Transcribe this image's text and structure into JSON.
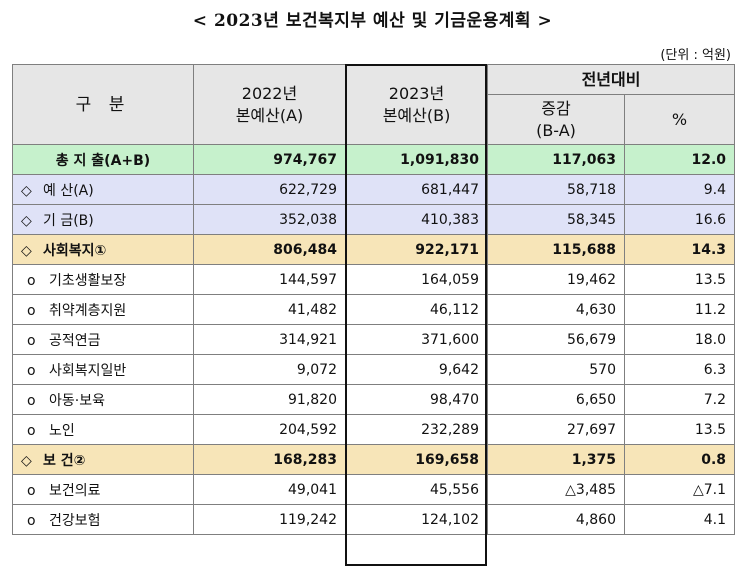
{
  "title": "< 2023년 보건복지부 예산 및 기금운용계획 >",
  "unit": "(단위 : 억원)",
  "header": {
    "category": "구 분",
    "col_2022_year": "2022년",
    "col_2022_sub": "본예산(A)",
    "col_2023_year": "2023년",
    "col_2023_sub": "본예산(B)",
    "yoy": "전년대비",
    "diff_line1": "증감",
    "diff_line2": "(B-A)",
    "pct": "%"
  },
  "rows": [
    {
      "marker": "",
      "label": "총 지 출(A+B)",
      "y2022": "974,767",
      "y2023": "1,091,830",
      "diff": "117,063",
      "pct": "12.0"
    },
    {
      "marker": "◇",
      "label": "예 산(A)",
      "y2022": "622,729",
      "y2023": "681,447",
      "diff": "58,718",
      "pct": "9.4"
    },
    {
      "marker": "◇",
      "label": "기 금(B)",
      "y2022": "352,038",
      "y2023": "410,383",
      "diff": "58,345",
      "pct": "16.6"
    },
    {
      "marker": "◇",
      "label": "사회복지①",
      "y2022": "806,484",
      "y2023": "922,171",
      "diff": "115,688",
      "pct": "14.3"
    },
    {
      "marker": "o",
      "label": "기초생활보장",
      "y2022": "144,597",
      "y2023": "164,059",
      "diff": "19,462",
      "pct": "13.5"
    },
    {
      "marker": "o",
      "label": "취약계층지원",
      "y2022": "41,482",
      "y2023": "46,112",
      "diff": "4,630",
      "pct": "11.2"
    },
    {
      "marker": "o",
      "label": "공적연금",
      "y2022": "314,921",
      "y2023": "371,600",
      "diff": "56,679",
      "pct": "18.0"
    },
    {
      "marker": "o",
      "label": "사회복지일반",
      "y2022": "9,072",
      "y2023": "9,642",
      "diff": "570",
      "pct": "6.3"
    },
    {
      "marker": "o",
      "label": "아동·보육",
      "y2022": "91,820",
      "y2023": "98,470",
      "diff": "6,650",
      "pct": "7.2"
    },
    {
      "marker": "o",
      "label": "노인",
      "y2022": "204,592",
      "y2023": "232,289",
      "diff": "27,697",
      "pct": "13.5"
    },
    {
      "marker": "◇",
      "label": "보 건②",
      "y2022": "168,283",
      "y2023": "169,658",
      "diff": "1,375",
      "pct": "0.8"
    },
    {
      "marker": "o",
      "label": "보건의료",
      "y2022": "49,041",
      "y2023": "45,556",
      "diff": "△3,485",
      "pct": "△7.1"
    },
    {
      "marker": "o",
      "label": "건강보험",
      "y2022": "119,242",
      "y2023": "124,102",
      "diff": "4,860",
      "pct": "4.1"
    }
  ]
}
